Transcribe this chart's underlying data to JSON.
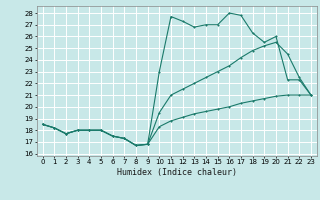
{
  "xlabel": "Humidex (Indice chaleur)",
  "bg_color": "#c8e8e8",
  "grid_color": "#ffffff",
  "line_color": "#1a7a6a",
  "xlim": [
    -0.5,
    23.5
  ],
  "ylim": [
    15.8,
    28.6
  ],
  "xticks": [
    0,
    1,
    2,
    3,
    4,
    5,
    6,
    7,
    8,
    9,
    10,
    11,
    12,
    13,
    14,
    15,
    16,
    17,
    18,
    19,
    20,
    21,
    22,
    23
  ],
  "yticks": [
    16,
    17,
    18,
    19,
    20,
    21,
    22,
    23,
    24,
    25,
    26,
    27,
    28
  ],
  "line1_x": [
    0,
    1,
    2,
    3,
    4,
    5,
    6,
    7,
    8,
    9,
    10,
    11,
    12,
    13,
    14,
    15,
    16,
    17,
    18,
    19,
    20,
    21,
    22,
    23
  ],
  "line1_y": [
    18.5,
    18.2,
    17.7,
    18.0,
    18.0,
    18.0,
    17.5,
    17.3,
    16.7,
    16.8,
    23.0,
    27.7,
    27.3,
    26.8,
    27.0,
    27.0,
    28.0,
    27.8,
    26.3,
    25.5,
    26.0,
    22.3,
    22.3,
    21.0
  ],
  "line2_x": [
    0,
    1,
    2,
    3,
    4,
    5,
    6,
    7,
    8,
    9,
    10,
    11,
    12,
    13,
    14,
    15,
    16,
    17,
    18,
    19,
    20,
    21,
    22,
    23
  ],
  "line2_y": [
    18.5,
    18.2,
    17.7,
    18.0,
    18.0,
    18.0,
    17.5,
    17.3,
    16.7,
    16.8,
    19.5,
    21.0,
    21.5,
    22.0,
    22.5,
    23.0,
    23.5,
    24.2,
    24.8,
    25.2,
    25.5,
    24.5,
    22.5,
    21.0
  ],
  "line3_x": [
    0,
    1,
    2,
    3,
    4,
    5,
    6,
    7,
    8,
    9,
    10,
    11,
    12,
    13,
    14,
    15,
    16,
    17,
    18,
    19,
    20,
    21,
    22,
    23
  ],
  "line3_y": [
    18.5,
    18.2,
    17.7,
    18.0,
    18.0,
    18.0,
    17.5,
    17.3,
    16.7,
    16.8,
    18.3,
    18.8,
    19.1,
    19.4,
    19.6,
    19.8,
    20.0,
    20.3,
    20.5,
    20.7,
    20.9,
    21.0,
    21.0,
    21.0
  ]
}
